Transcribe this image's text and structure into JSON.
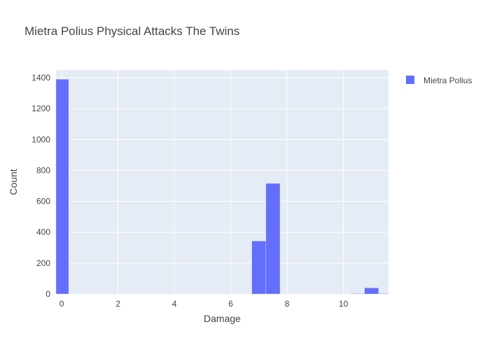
{
  "chart_data": {
    "type": "bar",
    "title": "Mietra Polius Physical Attacks The Twins",
    "xlabel": "Damage",
    "ylabel": "Count",
    "xlim": [
      -0.2,
      11.6
    ],
    "ylim": [
      0,
      1450
    ],
    "xticks": [
      0,
      2,
      4,
      6,
      8,
      10
    ],
    "yticks": [
      0,
      200,
      400,
      600,
      800,
      1000,
      1200,
      1400
    ],
    "bin_width": 0.5,
    "grid": true,
    "legend_position": "top-right",
    "series": [
      {
        "name": "Mietra Polius",
        "color": "#636efa",
        "bins": [
          {
            "x0": -0.25,
            "x1": 0.25,
            "count": 1390
          },
          {
            "x0": 6.75,
            "x1": 7.25,
            "count": 343
          },
          {
            "x0": 7.25,
            "x1": 7.75,
            "count": 716
          },
          {
            "x0": 10.25,
            "x1": 10.75,
            "count": 3
          },
          {
            "x0": 10.75,
            "x1": 11.25,
            "count": 40
          },
          {
            "x0": 11.25,
            "x1": 11.75,
            "count": 3
          }
        ]
      }
    ]
  }
}
